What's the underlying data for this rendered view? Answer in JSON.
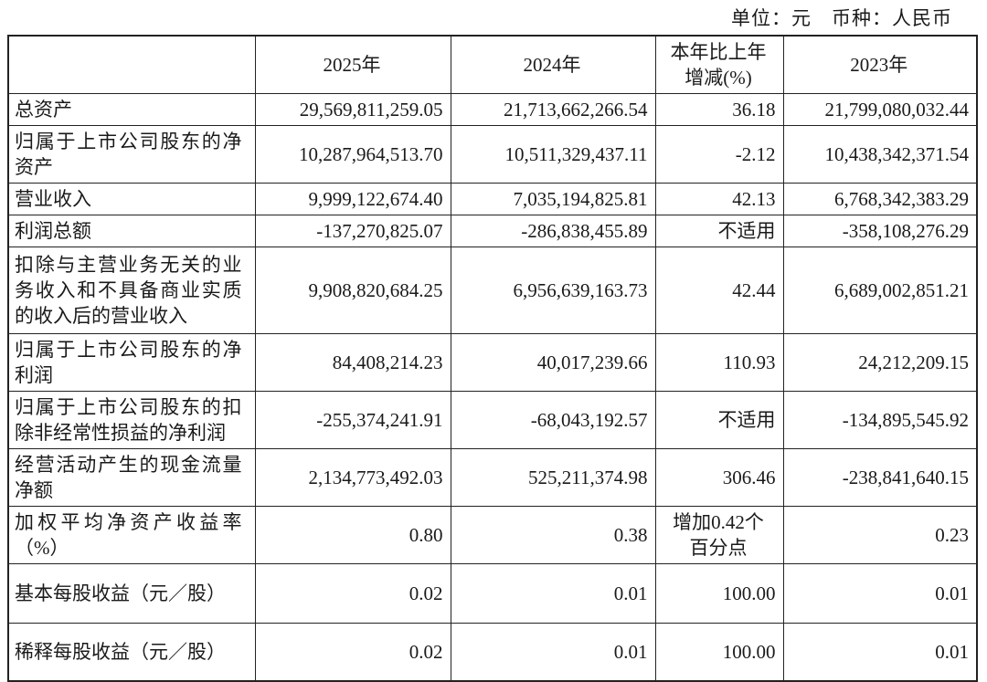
{
  "caption": {
    "text": "单位：元　币种：人民币"
  },
  "table": {
    "columns": [
      "",
      "2025年",
      "2024年",
      "本年比上年\n增减(%)",
      "2023年"
    ],
    "rows": [
      [
        "总资产",
        "29,569,811,259.05",
        "21,713,662,266.54",
        "36.18",
        "21,799,080,032.44"
      ],
      [
        "归属于上市公司股东的净资产",
        "10,287,964,513.70",
        "10,511,329,437.11",
        "-2.12",
        "10,438,342,371.54"
      ],
      [
        "营业收入",
        "9,999,122,674.40",
        "7,035,194,825.81",
        "42.13",
        "6,768,342,383.29"
      ],
      [
        "利润总额",
        "-137,270,825.07",
        "-286,838,455.89",
        "不适用",
        "-358,108,276.29"
      ],
      [
        "扣除与主营业务无关的业务收入和不具备商业实质的收入后的营业收入",
        "9,908,820,684.25",
        "6,956,639,163.73",
        "42.44",
        "6,689,002,851.21"
      ],
      [
        "归属于上市公司股东的净利润",
        "84,408,214.23",
        "40,017,239.66",
        "110.93",
        "24,212,209.15"
      ],
      [
        "归属于上市公司股东的扣除非经常性损益的净利润",
        "-255,374,241.91",
        "-68,043,192.57",
        "不适用",
        "-134,895,545.92"
      ],
      [
        "经营活动产生的现金流量净额",
        "2,134,773,492.03",
        "525,211,374.98",
        "306.46",
        "-238,841,640.15"
      ],
      [
        "加权平均净资产收益率（%）",
        "0.80",
        "0.38",
        "增加0.42个\n百分点",
        "0.23"
      ],
      [
        "基本每股收益（元／股）",
        "0.02",
        "0.01",
        "100.00",
        "0.01"
      ],
      [
        "稀释每股收益（元／股）",
        "0.02",
        "0.01",
        "100.00",
        "0.01"
      ]
    ]
  }
}
